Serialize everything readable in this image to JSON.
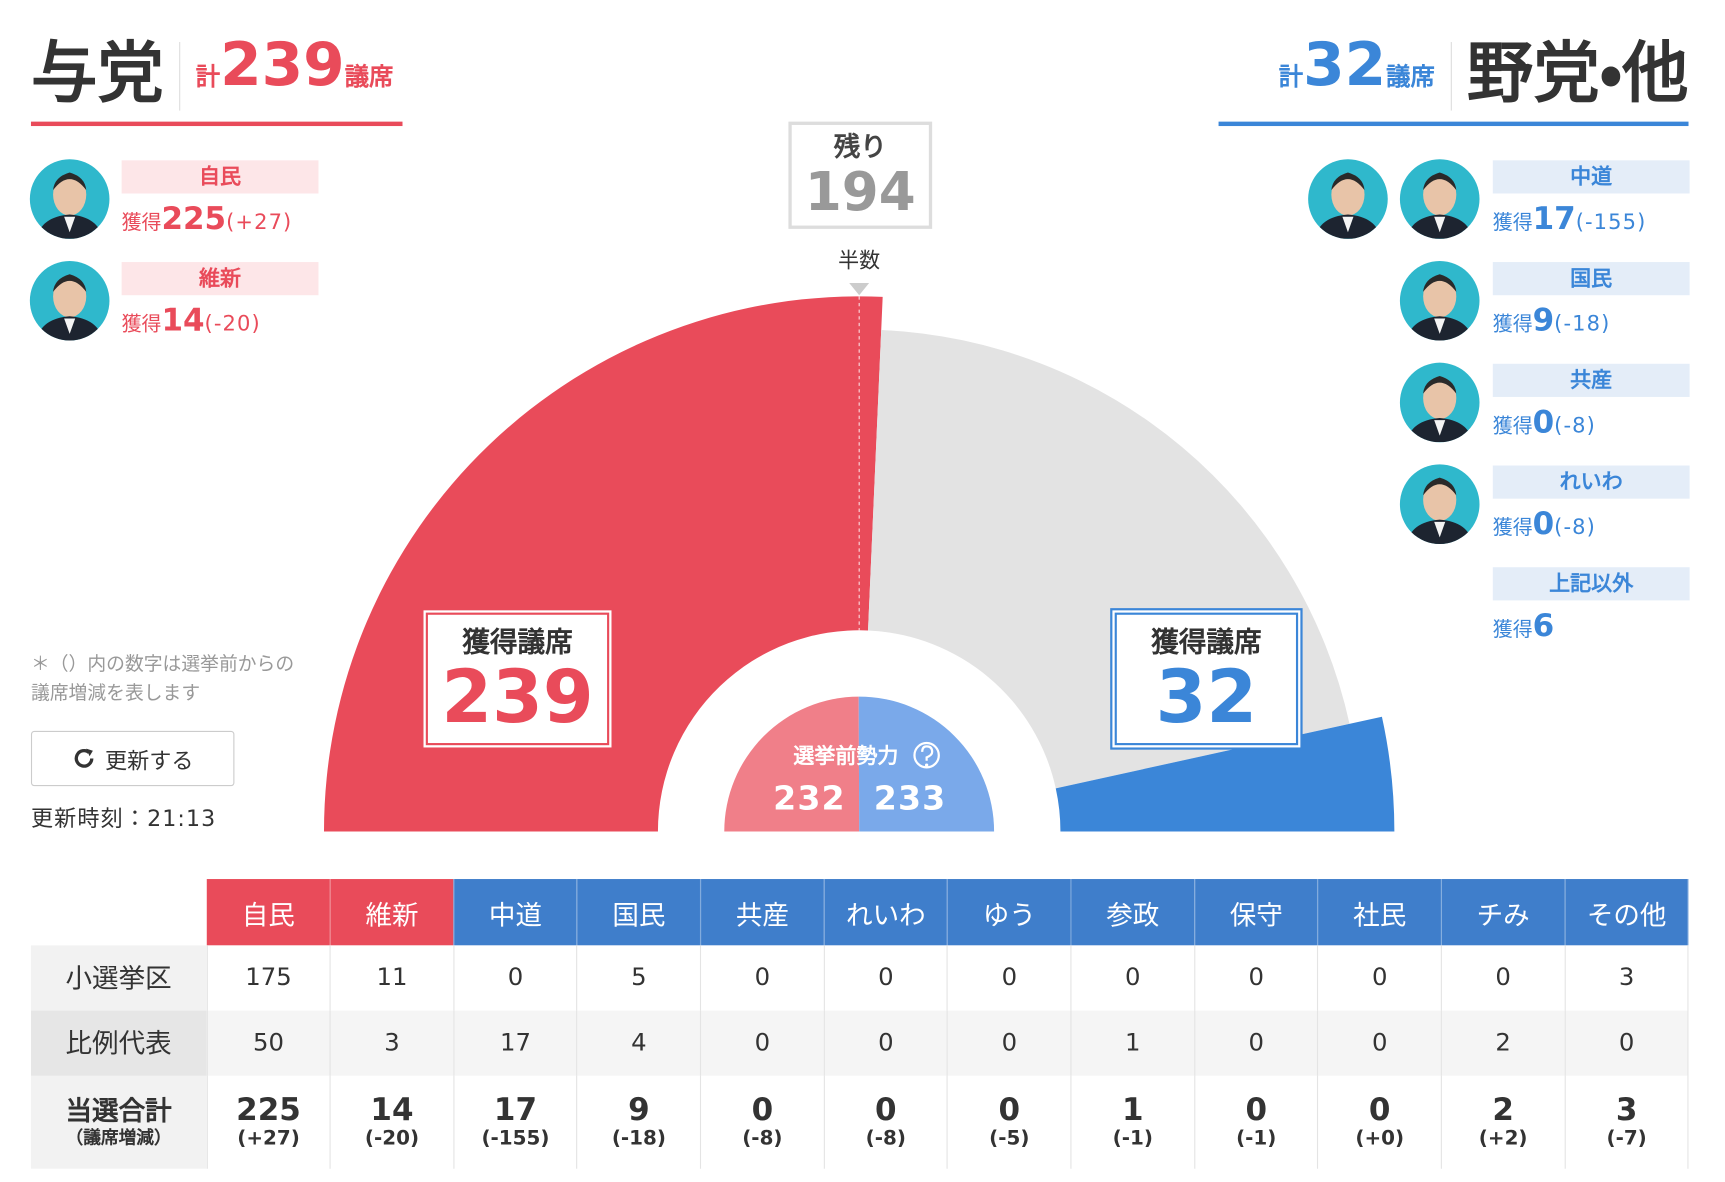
{
  "ruling": {
    "name": "与党",
    "total_prefix": "計",
    "total": 239,
    "unit": "議席"
  },
  "opposition": {
    "name": "野党・他",
    "total_prefix": "計",
    "total": 32,
    "unit": "議席"
  },
  "won_label": "獲得",
  "ruling_parties": [
    {
      "name": "自民",
      "won": 225,
      "change": "(+27)"
    },
    {
      "name": "維新",
      "won": 14,
      "change": "(-20)"
    }
  ],
  "opposition_parties": [
    {
      "name": "中道",
      "won": 17,
      "change": "(-155)"
    },
    {
      "name": "国民",
      "won": 9,
      "change": "(-18)"
    },
    {
      "name": "共産",
      "won": 0,
      "change": "(-8)"
    },
    {
      "name": "れいわ",
      "won": 0,
      "change": "(-8)"
    },
    {
      "name": "上記以外",
      "won": 6
    }
  ],
  "remaining": {
    "label": "残り",
    "value": 194
  },
  "majority_label": "半数",
  "seat_box": {
    "label": "獲得議席",
    "ruling": 239,
    "opposition": 32
  },
  "pre_election": {
    "label": "選挙前勢力",
    "ruling": 232,
    "opposition": 233
  },
  "note": [
    "＊（）内の数字は選挙前からの",
    "議席増減を表します"
  ],
  "refresh_button": "更新する",
  "update_time": "更新時刻：21:13",
  "table": {
    "columns": [
      "自民",
      "維新",
      "中道",
      "国民",
      "共産",
      "れいわ",
      "ゆう",
      "参政",
      "保守",
      "社民",
      "チみ",
      "その他"
    ],
    "rows": [
      {
        "label": "小選挙区",
        "values": [
          175,
          11,
          0,
          5,
          0,
          0,
          0,
          0,
          0,
          0,
          0,
          3
        ]
      },
      {
        "label": "比例代表",
        "values": [
          50,
          3,
          17,
          4,
          0,
          0,
          0,
          1,
          0,
          0,
          2,
          0
        ]
      },
      {
        "label": "当選合計",
        "sublabel": "（議席増減）",
        "values": [
          225,
          14,
          17,
          9,
          0,
          0,
          0,
          1,
          0,
          0,
          2,
          3
        ],
        "changes": [
          "(+27)",
          "(-20)",
          "(-155)",
          "(-18)",
          "(-8)",
          "(-8)",
          "(-5)",
          "(-1)",
          "(-1)",
          "(+0)",
          "(+2)",
          "(-7)"
        ]
      }
    ]
  }
}
